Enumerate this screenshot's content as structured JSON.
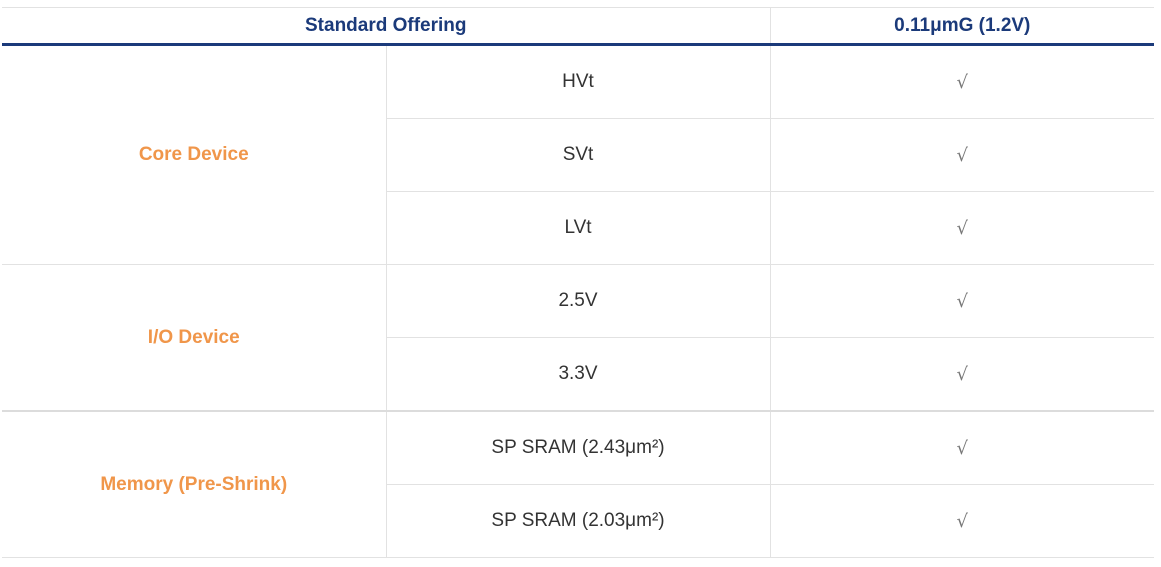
{
  "header": {
    "offering": "Standard Offering",
    "process": "0.11μmG (1.2V)"
  },
  "groups": [
    {
      "category": "Core Device",
      "items": [
        {
          "name": "HVt",
          "mark": "√"
        },
        {
          "name": "SVt",
          "mark": "√"
        },
        {
          "name": "LVt",
          "mark": "√"
        }
      ]
    },
    {
      "category": "I/O Device",
      "items": [
        {
          "name": "2.5V",
          "mark": "√"
        },
        {
          "name": "3.3V",
          "mark": "√"
        }
      ]
    },
    {
      "category": "Memory (Pre-Shrink)",
      "items": [
        {
          "name": "SP SRAM (2.43μm²)",
          "mark": "√"
        },
        {
          "name": "SP SRAM (2.03μm²)",
          "mark": "√"
        }
      ]
    }
  ],
  "colors": {
    "header": "#1b3a7a",
    "category": "#f0964a"
  }
}
